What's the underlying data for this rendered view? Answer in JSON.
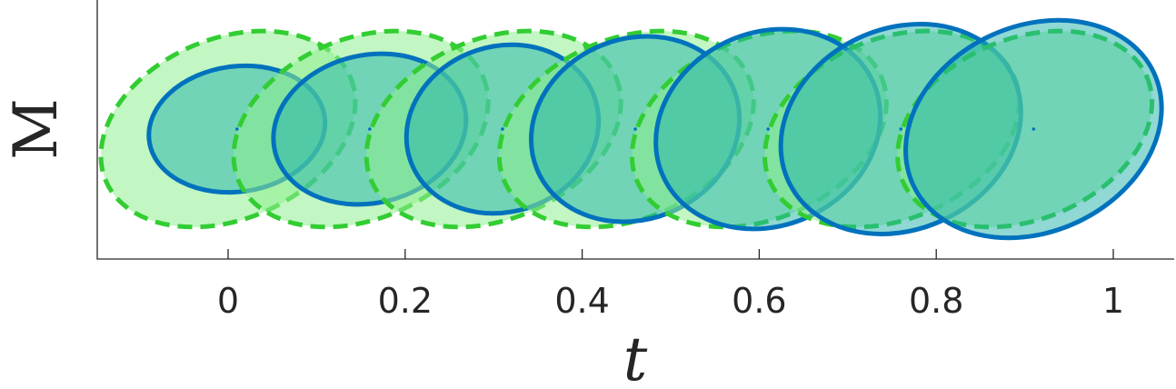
{
  "chart_data": {
    "type": "scatter",
    "xlabel": "t",
    "ylabel": "M",
    "xlim": [
      -0.148,
      1.068
    ],
    "ylim": [
      -1,
      1
    ],
    "xticks": [
      0,
      0.2,
      0.4,
      0.6,
      0.8,
      1
    ],
    "xtick_labels": [
      "0",
      "0.2",
      "0.4",
      "0.6",
      "0.8",
      "1"
    ],
    "grid": false,
    "colors": {
      "prior_fill": "#90ee90",
      "prior_edge": "#32cd32",
      "posterior_fill": "#20b2aa",
      "posterior_edge": "#0072bd",
      "mean_point": "#0072bd"
    },
    "series": [
      {
        "style": "dashed-edge-light-green-fill",
        "ellipses": [
          {
            "cx": 0.0,
            "cy": 0.0,
            "rx": 0.15,
            "ry": 0.72,
            "angle": -23
          },
          {
            "cx": 0.15,
            "cy": 0.0,
            "rx": 0.15,
            "ry": 0.72,
            "angle": -23
          },
          {
            "cx": 0.3,
            "cy": 0.0,
            "rx": 0.15,
            "ry": 0.72,
            "angle": -23
          },
          {
            "cx": 0.45,
            "cy": 0.0,
            "rx": 0.15,
            "ry": 0.72,
            "angle": -23
          },
          {
            "cx": 0.6,
            "cy": 0.0,
            "rx": 0.15,
            "ry": 0.72,
            "angle": -23
          },
          {
            "cx": 0.75,
            "cy": 0.0,
            "rx": 0.15,
            "ry": 0.72,
            "angle": -23
          },
          {
            "cx": 0.9,
            "cy": 0.0,
            "rx": 0.15,
            "ry": 0.72,
            "angle": -23
          }
        ]
      },
      {
        "style": "solid-edge-teal-fill",
        "ellipses": [
          {
            "cx": 0.01,
            "cy": 0.0,
            "rx": 0.1,
            "ry": 0.5,
            "angle": -8
          },
          {
            "cx": 0.16,
            "cy": 0.0,
            "rx": 0.11,
            "ry": 0.59,
            "angle": -13
          },
          {
            "cx": 0.31,
            "cy": 0.0,
            "rx": 0.11,
            "ry": 0.66,
            "angle": -18
          },
          {
            "cx": 0.46,
            "cy": 0.0,
            "rx": 0.12,
            "ry": 0.72,
            "angle": -22
          },
          {
            "cx": 0.61,
            "cy": 0.0,
            "rx": 0.13,
            "ry": 0.77,
            "angle": -24
          },
          {
            "cx": 0.76,
            "cy": 0.0,
            "rx": 0.14,
            "ry": 0.8,
            "angle": -25
          },
          {
            "cx": 0.91,
            "cy": 0.0,
            "rx": 0.15,
            "ry": 0.82,
            "angle": -25
          }
        ]
      }
    ]
  }
}
